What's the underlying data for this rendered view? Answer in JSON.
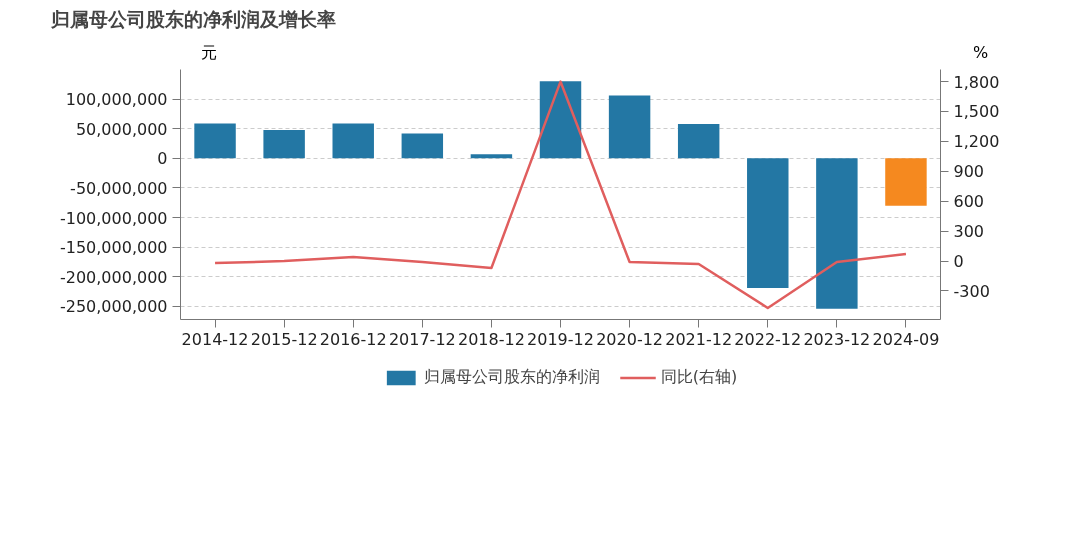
{
  "chart_data": {
    "type": "bar",
    "title": "归属母公司股东的净利润及增长率",
    "ylabel": "元",
    "y2label": "%",
    "categories": [
      "2014-12",
      "2015-12",
      "2016-12",
      "2017-12",
      "2018-12",
      "2019-12",
      "2020-12",
      "2021-12",
      "2022-12",
      "2023-12",
      "2024-09"
    ],
    "series": [
      {
        "name": "归属母公司股东的净利润",
        "color": "#2377a4",
        "colors": [
          "#2377a4",
          "#2377a4",
          "#2377a4",
          "#2377a4",
          "#2377a4",
          "#2377a4",
          "#2377a4",
          "#2377a4",
          "#2377a4",
          "#2377a4",
          "#f5891f"
        ],
        "values": [
          59000000,
          48000000,
          59000000,
          42000000,
          7000000,
          130000000,
          106000000,
          58000000,
          -219000000,
          -254000000,
          -80000000
        ]
      },
      {
        "name": "同比(右轴)",
        "type": "line",
        "axis": "y2",
        "color": "#e05e5e",
        "values": [
          -20,
          0,
          40,
          -10,
          -70,
          1800,
          -10,
          -30,
          -470,
          -10,
          70
        ]
      }
    ],
    "ylim": [
      -272000000,
      150000000
    ],
    "yticks": [
      {
        "value": -250000000,
        "label": "-250,000,000"
      },
      {
        "value": -200000000,
        "label": "-200,000,000"
      },
      {
        "value": -150000000,
        "label": "-150,000,000"
      },
      {
        "value": -100000000,
        "label": "-100,000,000"
      },
      {
        "value": -50000000,
        "label": "-50,000,000"
      },
      0,
      {
        "value": 50000000,
        "label": "50,000,000"
      },
      {
        "value": 100000000,
        "label": "100,000,000"
      }
    ],
    "y2lim": [
      -586,
      1921
    ],
    "y2ticks": [
      -300,
      0,
      300,
      600,
      900,
      {
        "value": 1200,
        "label": "1,200"
      },
      {
        "value": 1500,
        "label": "1,500"
      },
      {
        "value": 1800,
        "label": "1,800"
      }
    ],
    "grid": "y",
    "legend": "bottom",
    "marker": "none",
    "line_style": "solid"
  }
}
